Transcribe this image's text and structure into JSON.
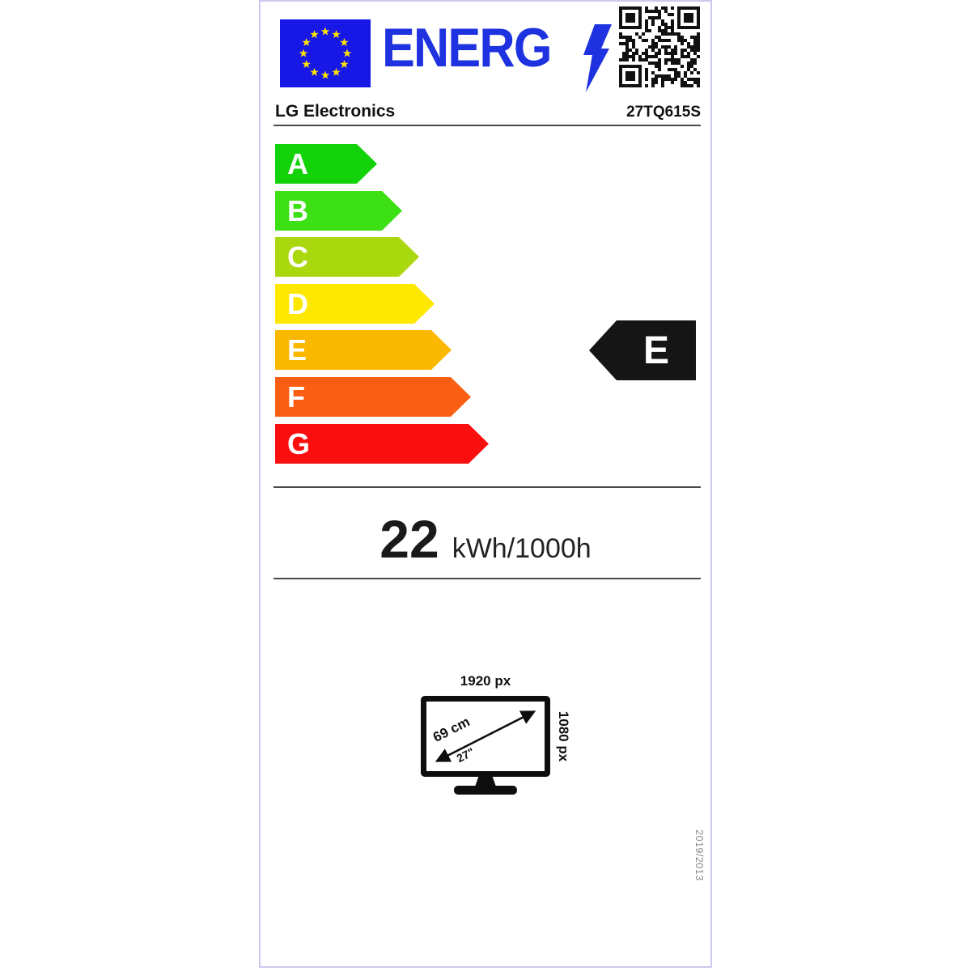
{
  "header": {
    "logo_text": "ENERG",
    "logo_color": "#1e32e0",
    "flag_color": "#1717e6",
    "star_color": "#ffe400"
  },
  "product": {
    "brand": "LG Electronics",
    "model": "27TQ615S"
  },
  "scale": {
    "classes": [
      {
        "label": "A",
        "color": "#14d20a"
      },
      {
        "label": "B",
        "color": "#3ce014"
      },
      {
        "label": "C",
        "color": "#aad80e"
      },
      {
        "label": "D",
        "color": "#ffe800"
      },
      {
        "label": "E",
        "color": "#fbb800"
      },
      {
        "label": "F",
        "color": "#fa5e13"
      },
      {
        "label": "G",
        "color": "#fa0f0f"
      }
    ],
    "rated_class": "E",
    "badge_color": "#151515"
  },
  "consumption": {
    "value": "22",
    "unit": "kWh/1000h"
  },
  "screen": {
    "horizontal_resolution": "1920 px",
    "vertical_resolution": "1080 px",
    "diagonal_cm": "69 cm",
    "diagonal_inch": "27\""
  },
  "regulation": "2019/2013"
}
